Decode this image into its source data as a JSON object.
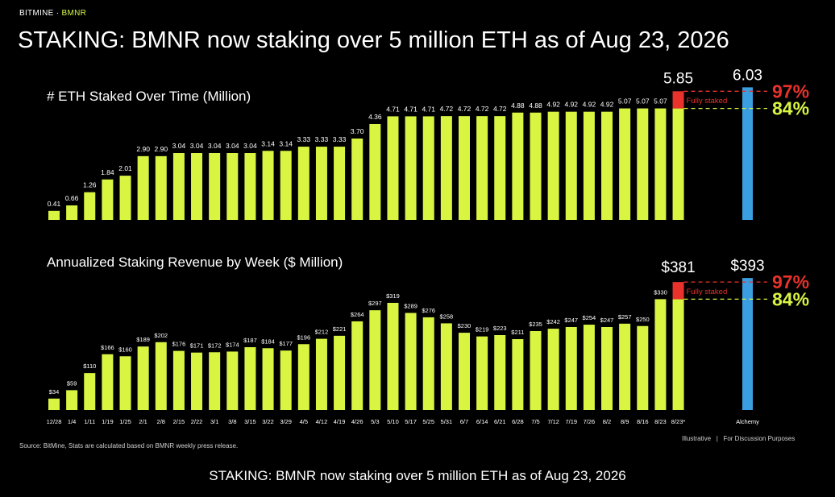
{
  "brand": {
    "company": "BITMINE",
    "separator": " · ",
    "ticker": "BMNR"
  },
  "title": "STAKING: BMNR now staking over 5 million ETH as of Aug 23, 2026",
  "source_note": "Source: BitMine, Stats are calculated based on BMNR weekly press release.",
  "disclaimer": {
    "left": "Illustrative",
    "separator": "|",
    "right": "For Discussion Purposes"
  },
  "caption": "STAKING: BMNR now staking over 5 million ETH as of Aug 23, 2026",
  "colors": {
    "bar": "#d9f542",
    "alchemy": "#3b9ee0",
    "fully_staked": "#e8322b",
    "line_97": "#e8322b",
    "line_84": "#d9f542",
    "background": "#000000"
  },
  "chart_data": [
    {
      "type": "bar",
      "title": "# ETH Staked Over Time (Million)",
      "categories": [
        "12/28",
        "1/4",
        "1/11",
        "1/19",
        "1/25",
        "2/1",
        "2/8",
        "2/15",
        "2/22",
        "3/1",
        "3/8",
        "3/15",
        "3/22",
        "3/29",
        "4/5",
        "4/12",
        "4/19",
        "4/26",
        "5/3",
        "5/10",
        "5/17",
        "5/25",
        "5/31",
        "6/7",
        "6/14",
        "6/21",
        "6/28",
        "7/5",
        "7/12",
        "7/19",
        "7/26",
        "8/2",
        "8/9",
        "8/16",
        "8/23",
        "8/23*"
      ],
      "values": [
        0.41,
        0.66,
        1.26,
        1.84,
        2.01,
        2.9,
        2.9,
        3.04,
        3.04,
        3.04,
        3.04,
        3.04,
        3.14,
        3.14,
        3.33,
        3.33,
        3.33,
        3.7,
        4.36,
        4.71,
        4.71,
        4.71,
        4.72,
        4.72,
        4.72,
        4.72,
        4.88,
        4.88,
        4.92,
        4.92,
        4.92,
        4.92,
        5.07,
        5.07,
        5.07,
        5.07
      ],
      "value_labels": [
        "0.41",
        "0.66",
        "1.26",
        "1.84",
        "2.01",
        "2.90",
        "2.90",
        "3.04",
        "3.04",
        "3.04",
        "3.04",
        "3.04",
        "3.14",
        "3.14",
        "3.33",
        "3.33",
        "3.33",
        "3.70",
        "4.36",
        "4.71",
        "4.71",
        "4.71",
        "4.72",
        "4.72",
        "4.72",
        "4.72",
        "4.88",
        "4.88",
        "4.92",
        "4.92",
        "4.92",
        "4.92",
        "5.07",
        "5.07",
        "5.07",
        ""
      ],
      "fully_staked": {
        "category": "8/23*",
        "total": 5.85,
        "label": "5.85",
        "text": "Fully staked"
      },
      "alchemy": {
        "name": "Alchemy",
        "value": 6.03,
        "label": "6.03"
      },
      "reference_lines": [
        {
          "label": "97%",
          "value": 5.85,
          "color": "#e8322b"
        },
        {
          "label": "84%",
          "value": 5.07,
          "color": "#d9f542"
        }
      ]
    },
    {
      "type": "bar",
      "title": "Annualized Staking Revenue by Week ($ Million)",
      "categories": [
        "12/28",
        "1/4",
        "1/11",
        "1/19",
        "1/25",
        "2/1",
        "2/8",
        "2/15",
        "2/22",
        "3/1",
        "3/8",
        "3/15",
        "3/22",
        "3/29",
        "4/5",
        "4/12",
        "4/19",
        "4/26",
        "5/3",
        "5/10",
        "5/17",
        "5/25",
        "5/31",
        "6/7",
        "6/14",
        "6/21",
        "6/28",
        "7/5",
        "7/12",
        "7/19",
        "7/26",
        "8/2",
        "8/9",
        "8/16",
        "8/23",
        "8/23*"
      ],
      "values": [
        34,
        59,
        110,
        166,
        160,
        189,
        202,
        176,
        171,
        172,
        174,
        187,
        184,
        177,
        196,
        212,
        221,
        264,
        297,
        319,
        289,
        276,
        258,
        230,
        219,
        223,
        211,
        235,
        242,
        247,
        254,
        247,
        257,
        250,
        330,
        330
      ],
      "value_labels": [
        "$34",
        "$59",
        "$110",
        "$166",
        "$160",
        "$189",
        "$202",
        "$176",
        "$171",
        "$172",
        "$174",
        "$187",
        "$184",
        "$177",
        "$196",
        "$212",
        "$221",
        "$264",
        "$297",
        "$319",
        "$289",
        "$276",
        "$258",
        "$230",
        "$219",
        "$223",
        "$211",
        "$235",
        "$242",
        "$247",
        "$254",
        "$247",
        "$257",
        "$250",
        "$330",
        ""
      ],
      "fully_staked": {
        "category": "8/23*",
        "total": 381,
        "label": "$381",
        "text": "Fully staked"
      },
      "alchemy": {
        "name": "Alchemy",
        "value": 393,
        "label": "$393"
      },
      "reference_lines": [
        {
          "label": "97%",
          "value": 381,
          "color": "#e8322b"
        },
        {
          "label": "84%",
          "value": 330,
          "color": "#d9f542"
        }
      ]
    }
  ]
}
